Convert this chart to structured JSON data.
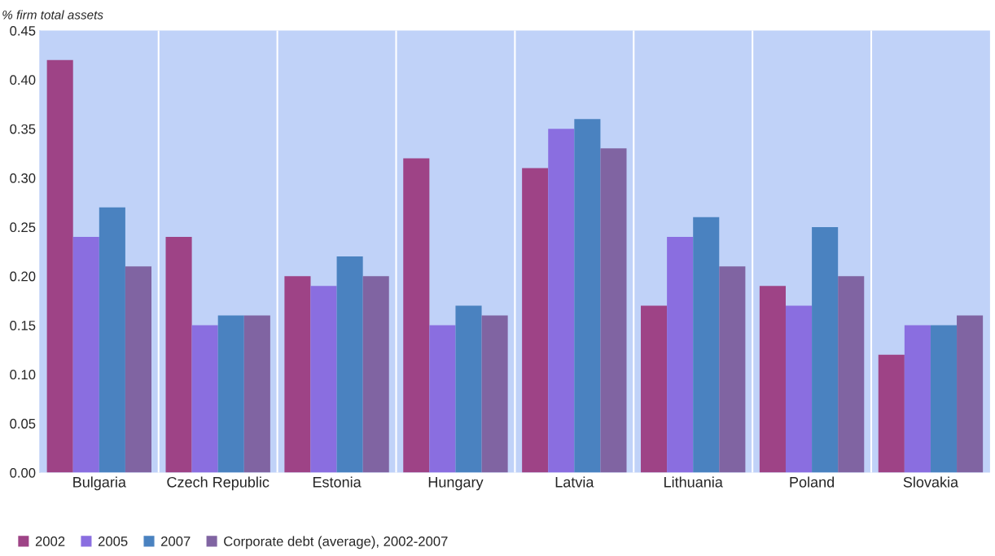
{
  "chart_data": {
    "type": "bar",
    "ylabel": "% firm total assets",
    "categories": [
      "Bulgaria",
      "Czech Republic",
      "Estonia",
      "Hungary",
      "Latvia",
      "Lithuania",
      "Poland",
      "Slovakia"
    ],
    "series": [
      {
        "name": "2002",
        "color": "#9e4386",
        "values": [
          0.42,
          0.24,
          0.2,
          0.32,
          0.31,
          0.17,
          0.19,
          0.12
        ]
      },
      {
        "name": "2005",
        "color": "#8a6ee0",
        "values": [
          0.24,
          0.15,
          0.19,
          0.15,
          0.35,
          0.24,
          0.17,
          0.15
        ]
      },
      {
        "name": "2007",
        "color": "#4a82c0",
        "values": [
          0.27,
          0.16,
          0.22,
          0.17,
          0.36,
          0.26,
          0.25,
          0.15
        ]
      },
      {
        "name": "Corporate debt (average), 2002-2007",
        "color": "#8064a2",
        "values": [
          0.21,
          0.16,
          0.2,
          0.16,
          0.33,
          0.21,
          0.2,
          0.16
        ]
      }
    ],
    "ylim": [
      0,
      0.45
    ],
    "yticks": [
      {
        "value": 0,
        "label": "0.00"
      },
      {
        "value": 0.05,
        "label": "0.05"
      },
      {
        "value": 0.1,
        "label": "0.10"
      },
      {
        "value": 0.15,
        "label": "0.15"
      },
      {
        "value": 0.2,
        "label": "0.20"
      },
      {
        "value": 0.25,
        "label": "0.25"
      },
      {
        "value": 0.3,
        "label": "0.30"
      },
      {
        "value": 0.35,
        "label": "0.35"
      },
      {
        "value": 0.4,
        "label": "0.40"
      },
      {
        "value": 0.45,
        "label": "0.45"
      }
    ],
    "grid": "x",
    "legend": "bottom left"
  }
}
